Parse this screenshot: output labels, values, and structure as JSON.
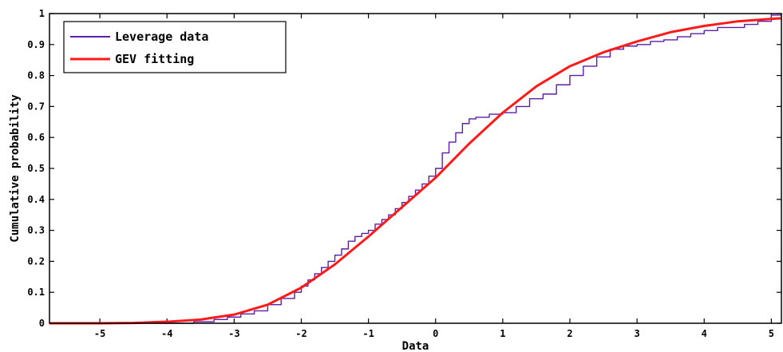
{
  "chart_data": {
    "type": "line",
    "title": "",
    "xlabel": "Data",
    "ylabel": "Cumulative probability",
    "xlim": [
      -5.75,
      5.15
    ],
    "ylim": [
      0,
      1
    ],
    "xticks": [
      -5,
      -4,
      -3,
      -2,
      -1,
      0,
      1,
      2,
      3,
      4,
      5
    ],
    "yticks": [
      0,
      0.1,
      0.2,
      0.3,
      0.4,
      0.5,
      0.6,
      0.7,
      0.8,
      0.9,
      1
    ],
    "grid": false,
    "legend_position": "top-left",
    "series": [
      {
        "name": "Leverage data",
        "color": "#5a1fa8",
        "style": "step",
        "x": [
          -5.75,
          -4.0,
          -3.6,
          -3.3,
          -3.1,
          -2.9,
          -2.7,
          -2.5,
          -2.3,
          -2.1,
          -2.0,
          -1.9,
          -1.8,
          -1.7,
          -1.6,
          -1.5,
          -1.4,
          -1.3,
          -1.2,
          -1.1,
          -1.0,
          -0.9,
          -0.8,
          -0.7,
          -0.6,
          -0.5,
          -0.4,
          -0.3,
          -0.2,
          -0.1,
          0.0,
          0.1,
          0.2,
          0.3,
          0.4,
          0.5,
          0.6,
          0.8,
          1.0,
          1.2,
          1.4,
          1.6,
          1.8,
          2.0,
          2.2,
          2.4,
          2.6,
          2.8,
          3.0,
          3.2,
          3.4,
          3.6,
          3.8,
          4.0,
          4.2,
          4.4,
          4.6,
          4.8,
          5.0,
          5.15
        ],
        "y": [
          0.0,
          0.0,
          0.005,
          0.012,
          0.02,
          0.03,
          0.04,
          0.06,
          0.08,
          0.1,
          0.12,
          0.14,
          0.16,
          0.18,
          0.2,
          0.22,
          0.24,
          0.265,
          0.28,
          0.29,
          0.3,
          0.32,
          0.335,
          0.35,
          0.37,
          0.39,
          0.41,
          0.43,
          0.45,
          0.475,
          0.5,
          0.55,
          0.585,
          0.615,
          0.645,
          0.66,
          0.665,
          0.675,
          0.68,
          0.7,
          0.725,
          0.74,
          0.77,
          0.8,
          0.83,
          0.86,
          0.885,
          0.895,
          0.9,
          0.91,
          0.915,
          0.925,
          0.935,
          0.945,
          0.955,
          0.955,
          0.965,
          0.975,
          0.995,
          1.0
        ]
      },
      {
        "name": "GEV fitting",
        "color": "#ff1a1a",
        "style": "smooth",
        "x": [
          -5.75,
          -5.0,
          -4.5,
          -4.0,
          -3.5,
          -3.0,
          -2.5,
          -2.0,
          -1.5,
          -1.0,
          -0.5,
          0.0,
          0.5,
          1.0,
          1.5,
          2.0,
          2.5,
          3.0,
          3.5,
          4.0,
          4.5,
          5.0,
          5.15
        ],
        "y": [
          0.0,
          0.0,
          0.001,
          0.005,
          0.012,
          0.028,
          0.06,
          0.115,
          0.19,
          0.28,
          0.375,
          0.47,
          0.58,
          0.68,
          0.765,
          0.83,
          0.875,
          0.91,
          0.94,
          0.96,
          0.975,
          0.983,
          0.985
        ]
      }
    ]
  }
}
